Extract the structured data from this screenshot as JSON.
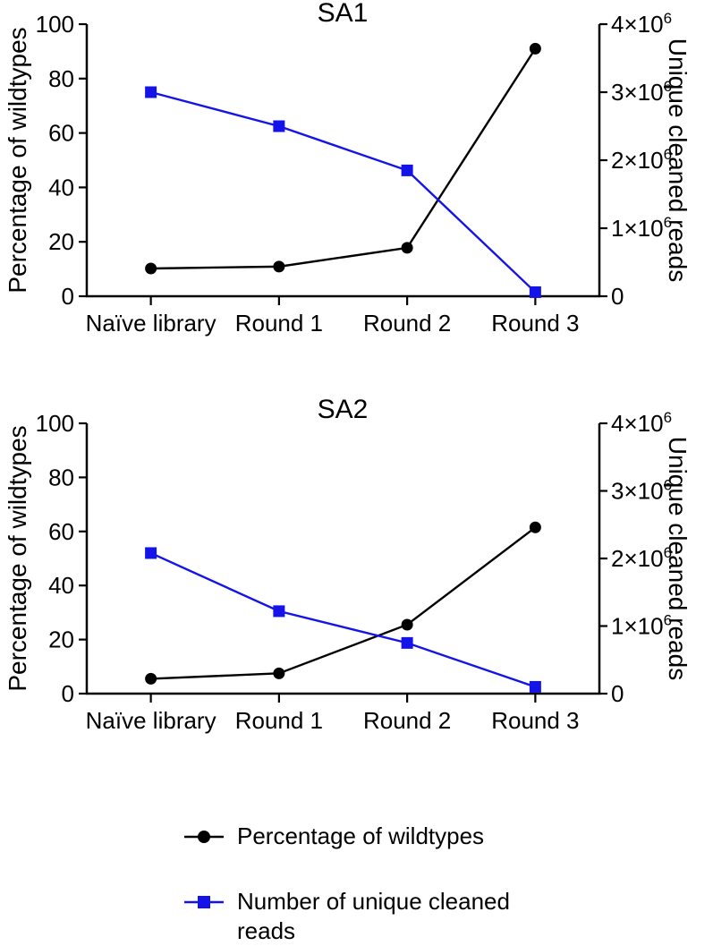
{
  "figure": {
    "background": "#ffffff",
    "accent_blue": "#1414e8",
    "accent_black": "#000000"
  },
  "legend": {
    "position": "bottom",
    "items": [
      {
        "label": "Percentage of wildtypes",
        "marker": "circle",
        "color": "#000000"
      },
      {
        "label": "Number of unique cleaned reads",
        "marker": "square",
        "color": "#1414e8"
      }
    ]
  },
  "chart_data": [
    {
      "type": "line",
      "title": "SA1",
      "categories": [
        "Naïve library",
        "Round 1",
        "Round 2",
        "Round 3"
      ],
      "grid": "off",
      "left_axis": {
        "label": "Percentage of wildtypes",
        "range": [
          0,
          100
        ],
        "ticks": [
          0,
          20,
          40,
          60,
          80,
          100
        ]
      },
      "right_axis": {
        "label": "Unique cleaned reads",
        "range": [
          0,
          4000000
        ],
        "ticks": [
          {
            "value": 0,
            "label": "0"
          },
          {
            "value": 1000000,
            "label": "1×10^6"
          },
          {
            "value": 2000000,
            "label": "2×10^6"
          },
          {
            "value": 3000000,
            "label": "3×10^6"
          },
          {
            "value": 4000000,
            "label": "4×10^6"
          }
        ]
      },
      "series": [
        {
          "name": "Percentage of wildtypes",
          "axis": "left",
          "color": "#000000",
          "marker": "circle",
          "values": [
            10.2,
            10.9,
            17.8,
            91
          ]
        },
        {
          "name": "Number of unique cleaned reads",
          "axis": "right",
          "color": "#1414e8",
          "marker": "square",
          "values": [
            3000000,
            2500000,
            1850000,
            60000
          ]
        }
      ]
    },
    {
      "type": "line",
      "title": "SA2",
      "categories": [
        "Naïve library",
        "Round 1",
        "Round 2",
        "Round 3"
      ],
      "grid": "off",
      "left_axis": {
        "label": "Percentage of wildtypes",
        "range": [
          0,
          100
        ],
        "ticks": [
          0,
          20,
          40,
          60,
          80,
          100
        ]
      },
      "right_axis": {
        "label": "Unique cleaned reads",
        "range": [
          0,
          4000000
        ],
        "ticks": [
          {
            "value": 0,
            "label": "0"
          },
          {
            "value": 1000000,
            "label": "1×10^6"
          },
          {
            "value": 2000000,
            "label": "2×10^6"
          },
          {
            "value": 3000000,
            "label": "3×10^6"
          },
          {
            "value": 4000000,
            "label": "4×10^6"
          }
        ]
      },
      "series": [
        {
          "name": "Percentage of wildtypes",
          "axis": "left",
          "color": "#000000",
          "marker": "circle",
          "values": [
            5.5,
            7.5,
            25.5,
            61.5
          ]
        },
        {
          "name": "Number of unique cleaned reads",
          "axis": "right",
          "color": "#1414e8",
          "marker": "square",
          "values": [
            2080000,
            1220000,
            750000,
            100000
          ]
        }
      ]
    }
  ]
}
